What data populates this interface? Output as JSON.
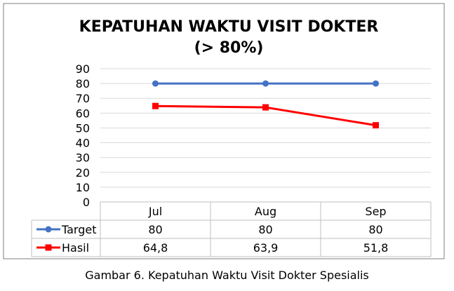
{
  "chart_data": {
    "type": "line",
    "title_line1": "KEPATUHAN WAKTU VISIT DOKTER",
    "title_line2": "(> 80%)",
    "categories": [
      "Jul",
      "Aug",
      "Sep"
    ],
    "series": [
      {
        "name": "Target",
        "values": [
          80,
          80,
          80
        ],
        "display": [
          "80",
          "80",
          "80"
        ],
        "color": "#4472C4",
        "marker": "circle"
      },
      {
        "name": "Hasil",
        "values": [
          64.8,
          63.9,
          51.8
        ],
        "display": [
          "64,8",
          "63,9",
          "51,8"
        ],
        "color": "#FF0000",
        "marker": "square"
      }
    ],
    "ylim": [
      0,
      90
    ],
    "yticks": [
      0,
      10,
      20,
      30,
      40,
      50,
      60,
      70,
      80,
      90
    ],
    "grid": true,
    "legend": "data-table"
  },
  "caption": "Gambar 6. Kepatuhan Waktu Visit Dokter Spesialis"
}
